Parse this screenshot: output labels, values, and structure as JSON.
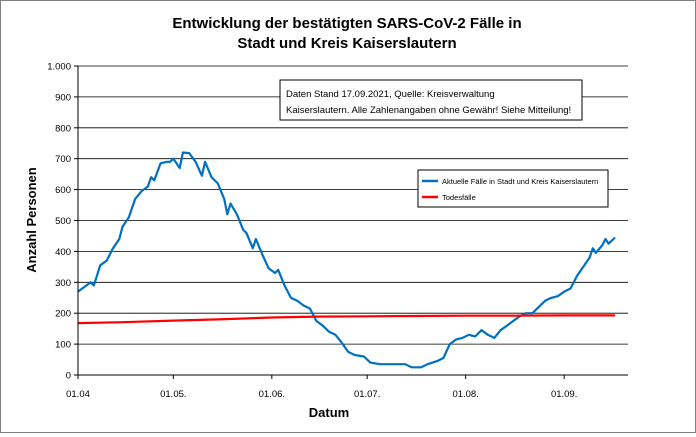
{
  "chart_data": {
    "type": "line",
    "title": [
      "Entwicklung der bestätigten SARS-CoV-2 Fälle in",
      "Stadt und Kreis Kaiserslautern"
    ],
    "xlabel": "Datum",
    "ylabel": "Anzahl Personen",
    "ylim": [
      0,
      1000
    ],
    "yticks": [
      {
        "value": 0,
        "label": "0"
      },
      {
        "value": 100,
        "label": "100"
      },
      {
        "value": 200,
        "label": "200"
      },
      {
        "value": 300,
        "label": "300"
      },
      {
        "value": 400,
        "label": "400"
      },
      {
        "value": 500,
        "label": "500"
      },
      {
        "value": 600,
        "label": "600"
      },
      {
        "value": 700,
        "label": "700"
      },
      {
        "value": 800,
        "label": "800"
      },
      {
        "value": 900,
        "label": "900"
      },
      {
        "value": 1000,
        "label": "1.000"
      }
    ],
    "xrange": [
      "2021-04-01",
      "2021-09-17"
    ],
    "xticks": [
      {
        "date": "2021-04-01",
        "label": "01.04"
      },
      {
        "date": "2021-05-01",
        "label": "01.05."
      },
      {
        "date": "2021-06-01",
        "label": "01.06."
      },
      {
        "date": "2021-07-01",
        "label": "01.07."
      },
      {
        "date": "2021-08-01",
        "label": "01.08."
      },
      {
        "date": "2021-09-01",
        "label": "01.09."
      }
    ],
    "grid": "horizontal",
    "legend_placement": "right",
    "annotation": [
      "Daten Stand 17.09.2021, Quelle: Kreisverwaltung",
      "Kaiserslautern. Alle Zahlenangaben ohne Gewähr! Siehe Mitteilung!"
    ],
    "series": [
      {
        "name": "Aktuelle Fälle in Stadt und Kreis Kaiserslautern",
        "color": "#0070c0",
        "points": [
          [
            "2021-04-01",
            270
          ],
          [
            "2021-04-03",
            285
          ],
          [
            "2021-04-05",
            300
          ],
          [
            "2021-04-06",
            290
          ],
          [
            "2021-04-08",
            355
          ],
          [
            "2021-04-10",
            370
          ],
          [
            "2021-04-12",
            410
          ],
          [
            "2021-04-14",
            440
          ],
          [
            "2021-04-15",
            480
          ],
          [
            "2021-04-17",
            510
          ],
          [
            "2021-04-19",
            570
          ],
          [
            "2021-04-21",
            595
          ],
          [
            "2021-04-23",
            610
          ],
          [
            "2021-04-24",
            640
          ],
          [
            "2021-04-25",
            630
          ],
          [
            "2021-04-27",
            685
          ],
          [
            "2021-04-29",
            690
          ],
          [
            "2021-04-30",
            690
          ],
          [
            "2021-05-01",
            700
          ],
          [
            "2021-05-02",
            685
          ],
          [
            "2021-05-03",
            670
          ],
          [
            "2021-05-04",
            720
          ],
          [
            "2021-05-06",
            718
          ],
          [
            "2021-05-08",
            690
          ],
          [
            "2021-05-10",
            645
          ],
          [
            "2021-05-11",
            690
          ],
          [
            "2021-05-13",
            640
          ],
          [
            "2021-05-15",
            620
          ],
          [
            "2021-05-17",
            570
          ],
          [
            "2021-05-18",
            520
          ],
          [
            "2021-05-19",
            555
          ],
          [
            "2021-05-21",
            520
          ],
          [
            "2021-05-23",
            470
          ],
          [
            "2021-05-24",
            460
          ],
          [
            "2021-05-26",
            410
          ],
          [
            "2021-05-27",
            440
          ],
          [
            "2021-05-29",
            390
          ],
          [
            "2021-05-31",
            345
          ],
          [
            "2021-06-02",
            330
          ],
          [
            "2021-06-03",
            340
          ],
          [
            "2021-06-05",
            290
          ],
          [
            "2021-06-07",
            250
          ],
          [
            "2021-06-09",
            240
          ],
          [
            "2021-06-11",
            225
          ],
          [
            "2021-06-13",
            215
          ],
          [
            "2021-06-15",
            175
          ],
          [
            "2021-06-17",
            160
          ],
          [
            "2021-06-19",
            140
          ],
          [
            "2021-06-21",
            130
          ],
          [
            "2021-06-23",
            105
          ],
          [
            "2021-06-25",
            75
          ],
          [
            "2021-06-27",
            65
          ],
          [
            "2021-06-30",
            60
          ],
          [
            "2021-07-02",
            40
          ],
          [
            "2021-07-05",
            35
          ],
          [
            "2021-07-09",
            35
          ],
          [
            "2021-07-13",
            35
          ],
          [
            "2021-07-15",
            25
          ],
          [
            "2021-07-18",
            25
          ],
          [
            "2021-07-20",
            35
          ],
          [
            "2021-07-23",
            45
          ],
          [
            "2021-07-25",
            55
          ],
          [
            "2021-07-27",
            100
          ],
          [
            "2021-07-29",
            115
          ],
          [
            "2021-07-31",
            120
          ],
          [
            "2021-08-02",
            130
          ],
          [
            "2021-08-04",
            125
          ],
          [
            "2021-08-06",
            145
          ],
          [
            "2021-08-08",
            130
          ],
          [
            "2021-08-10",
            120
          ],
          [
            "2021-08-12",
            145
          ],
          [
            "2021-08-14",
            160
          ],
          [
            "2021-08-16",
            175
          ],
          [
            "2021-08-18",
            190
          ],
          [
            "2021-08-20",
            200
          ],
          [
            "2021-08-22",
            200
          ],
          [
            "2021-08-24",
            220
          ],
          [
            "2021-08-26",
            240
          ],
          [
            "2021-08-28",
            250
          ],
          [
            "2021-08-30",
            255
          ],
          [
            "2021-09-01",
            270
          ],
          [
            "2021-09-03",
            280
          ],
          [
            "2021-09-05",
            320
          ],
          [
            "2021-09-07",
            350
          ],
          [
            "2021-09-09",
            380
          ],
          [
            "2021-09-10",
            410
          ],
          [
            "2021-09-11",
            395
          ],
          [
            "2021-09-13",
            420
          ],
          [
            "2021-09-14",
            440
          ],
          [
            "2021-09-15",
            425
          ],
          [
            "2021-09-17",
            445
          ]
        ]
      },
      {
        "name": "Todesfälle",
        "color": "#ff0000",
        "points": [
          [
            "2021-04-01",
            168
          ],
          [
            "2021-04-15",
            171
          ],
          [
            "2021-05-01",
            176
          ],
          [
            "2021-05-15",
            180
          ],
          [
            "2021-06-01",
            186
          ],
          [
            "2021-06-15",
            189
          ],
          [
            "2021-07-01",
            190
          ],
          [
            "2021-07-15",
            191
          ],
          [
            "2021-08-01",
            192
          ],
          [
            "2021-08-15",
            192
          ],
          [
            "2021-09-01",
            193
          ],
          [
            "2021-09-17",
            193
          ]
        ]
      }
    ]
  }
}
